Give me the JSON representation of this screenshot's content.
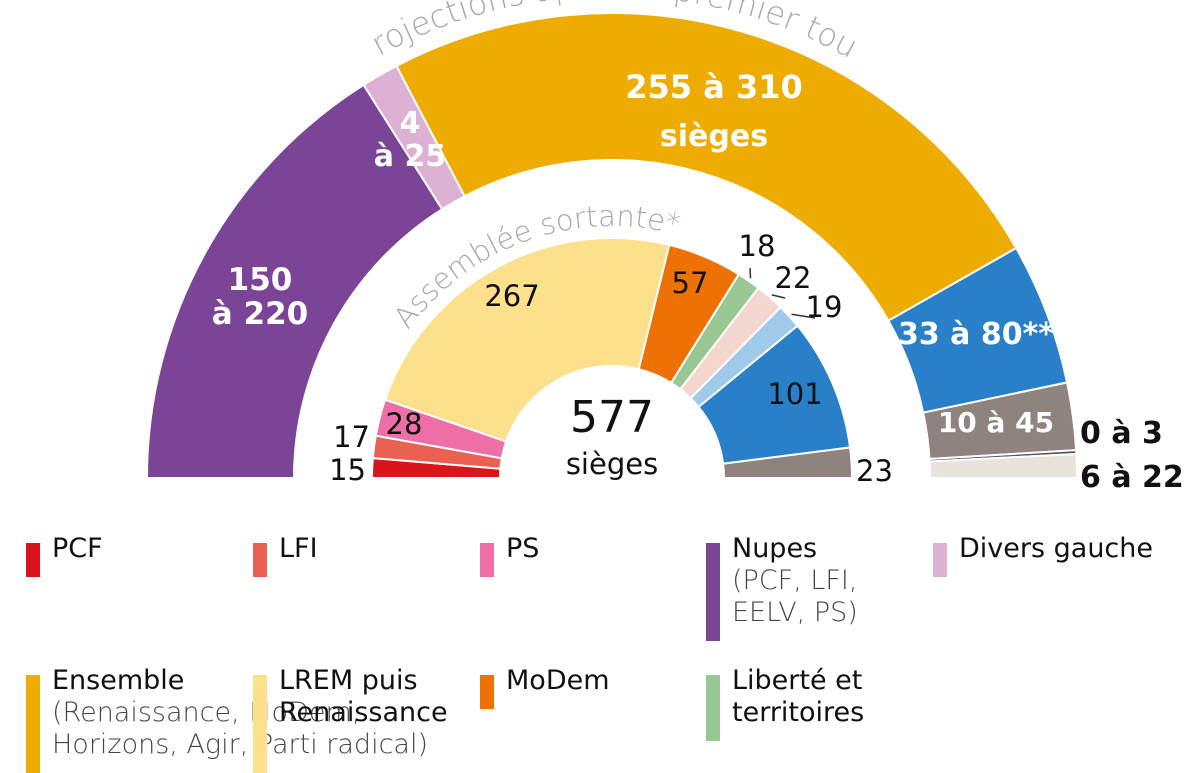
{
  "chart_data": [
    {
      "type": "pie",
      "variant": "half-donut",
      "title": "Projections après le premier tour",
      "series": [
        {
          "name": "Nupes",
          "label": "150 à 220",
          "min": 150,
          "max": 220,
          "value": 185,
          "color": "#7b4496"
        },
        {
          "name": "Divers gauche",
          "label": "4 à 25",
          "min": 4,
          "max": 25,
          "value": 15,
          "color": "#ddb1d4"
        },
        {
          "name": "Ensemble",
          "label": "255 à 310",
          "sublabel": "sièges",
          "min": 255,
          "max": 310,
          "value": 282,
          "color": "#efac00"
        },
        {
          "name": "",
          "label": "33 à 80**",
          "min": 33,
          "max": 80,
          "value": 57,
          "color": "#2a7fc9"
        },
        {
          "name": "",
          "label": "10 à 45",
          "min": 10,
          "max": 45,
          "value": 27,
          "color": "#8e837f"
        },
        {
          "name": "",
          "label": "0 à 3",
          "min": 0,
          "max": 3,
          "value": 1.5,
          "color": "#5a5350"
        },
        {
          "name": "",
          "label": "6 à 22",
          "min": 6,
          "max": 22,
          "value": 9.5,
          "color": "#e8e3dd"
        }
      ]
    },
    {
      "type": "pie",
      "variant": "half-donut",
      "title": "Assemblée sortante*",
      "center_value": "577",
      "center_label": "sièges",
      "series": [
        {
          "name": "PCF",
          "label": "15",
          "value": 15,
          "color": "#d9141b"
        },
        {
          "name": "LFI",
          "label": "17",
          "value": 17,
          "color": "#ea6153"
        },
        {
          "name": "PS",
          "label": "28",
          "value": 28,
          "color": "#ee6ea6"
        },
        {
          "name": "LREM puis Renaissance",
          "label": "267",
          "value": 267,
          "color": "#fde08c"
        },
        {
          "name": "MoDem",
          "label": "57",
          "value": 57,
          "color": "#ee7203"
        },
        {
          "name": "Liberté et territoires",
          "label": "18",
          "value": 18,
          "color": "#98c794"
        },
        {
          "name": "",
          "label": "22",
          "value": 22,
          "color": "#f3d7cf"
        },
        {
          "name": "",
          "label": "19",
          "value": 19,
          "color": "#9fcaea"
        },
        {
          "name": "",
          "label": "101",
          "value": 101,
          "color": "#2a7fc9"
        },
        {
          "name": "",
          "label": "23",
          "value": 23,
          "color": "#8e837f"
        }
      ]
    }
  ],
  "legend": [
    {
      "label": "PCF",
      "sub": "",
      "color": "#d9141b"
    },
    {
      "label": "LFI",
      "sub": "",
      "color": "#ea6153"
    },
    {
      "label": "PS",
      "sub": "",
      "color": "#ee6ea6"
    },
    {
      "label": "Nupes",
      "sub": "(PCF, LFI, EELV, PS)",
      "color": "#7b4496"
    },
    {
      "label": "Divers gauche",
      "sub": "",
      "color": "#ddb1d4"
    },
    {
      "label": "Ensemble",
      "sub": "(Renaissance, MoDem, Horizons, Agir, Parti radical)",
      "color": "#efac00"
    },
    {
      "label": "LREM puis Renaissance",
      "sub": "",
      "color": "#fde08c"
    },
    {
      "label": "MoDem",
      "sub": "",
      "color": "#ee7203"
    },
    {
      "label": "Liberté et territoires",
      "sub": "",
      "color": "#98c794"
    }
  ]
}
